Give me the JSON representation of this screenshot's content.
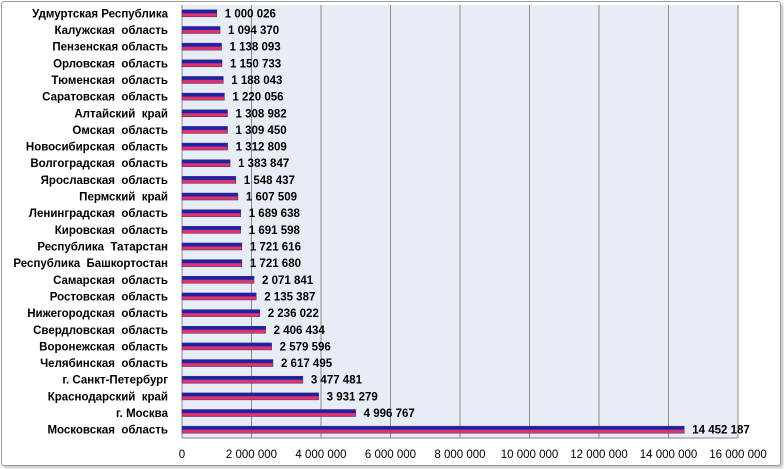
{
  "chart_data": {
    "type": "bar",
    "orientation": "horizontal",
    "title": "",
    "xlabel": "",
    "ylabel": "",
    "xlim": [
      0,
      16000000
    ],
    "x_ticks": [
      0,
      2000000,
      4000000,
      6000000,
      8000000,
      10000000,
      12000000,
      14000000,
      16000000
    ],
    "x_tick_labels": [
      "0",
      "2 000 000",
      "4 000 000",
      "6 000 000",
      "8 000 000",
      "10 000 000",
      "12 000 000",
      "14 000 000",
      "16 000 000"
    ],
    "grid": true,
    "legend": "none",
    "bar_gradient_colors": [
      "#e0336a",
      "#1e22a8"
    ],
    "plot_background": "#e8ecf5",
    "categories": [
      "Удмуртская Республика",
      "Калужская  область",
      "Пензенская область",
      "Орловская  область",
      "Тюменская  область",
      "Саратовская  область",
      "Алтайский  край",
      "Омская  область",
      "Новосибирская  область",
      "Волгоградская  область",
      "Ярославская  область",
      "Пермский  край",
      "Ленинградская  область",
      "Кировская  область",
      "Республика  Татарстан",
      "Республика  Башкортостан",
      "Самарская  область",
      "Ростовская  область",
      "Нижегородская  область",
      "Свердловская  область",
      "Воронежская  область",
      "Челябинская  область",
      "г. Санкт-Петербург",
      "Краснодарский  край",
      "г. Москва",
      "Московская  область"
    ],
    "values": [
      1000026,
      1094370,
      1138093,
      1150733,
      1188043,
      1220056,
      1308982,
      1309450,
      1312809,
      1383847,
      1548437,
      1607509,
      1689638,
      1691598,
      1721616,
      1721680,
      2071841,
      2135387,
      2236022,
      2406434,
      2579596,
      2617495,
      3477481,
      3931279,
      4996767,
      14452187
    ],
    "value_labels": [
      "1 000 026",
      "1 094 370",
      "1 138 093",
      "1 150 733",
      "1 188 043",
      "1 220 056",
      "1 308 982",
      "1 309 450",
      "1 312 809",
      "1 383 847",
      "1 548 437",
      "1 607 509",
      "1 689 638",
      "1 691 598",
      "1 721 616",
      "1 721 680",
      "2 071 841",
      "2 135 387",
      "2 236 022",
      "2 406 434",
      "2 579 596",
      "2 617 495",
      "3 477 481",
      "3 931 279",
      "4 996 767",
      "14 452 187"
    ]
  }
}
